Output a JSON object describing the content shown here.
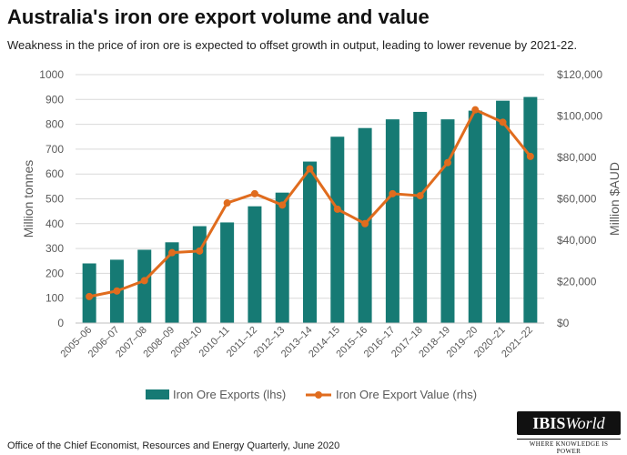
{
  "title": "Australia's iron ore export volume and value",
  "subtitle": "Weakness in the price of iron ore is expected to offset growth in output, leading to lower revenue by 2021-22.",
  "source": "Office of the Chief Economist, Resources and Energy Quarterly, June 2020",
  "logo": {
    "name_bold": "IBIS",
    "name_italic": "World",
    "tagline": "WHERE KNOWLEDGE IS POWER"
  },
  "colors": {
    "bar": "#167a74",
    "line": "#e06c1e",
    "grid": "#d9d9d9",
    "axis_text": "#595959"
  },
  "chart_data": {
    "type": "bar",
    "categories": [
      "2005–06",
      "2006–07",
      "2007–08",
      "2008–09",
      "2009–10",
      "2010–11",
      "2011–12",
      "2012–13",
      "2013–14",
      "2014–15",
      "2015–16",
      "2016–17",
      "2017–18",
      "2018–19",
      "2019–20",
      "2020–21",
      "2021–22"
    ],
    "series": [
      {
        "name": "Iron Ore Exports (lhs)",
        "type": "bar",
        "axis": "left",
        "values": [
          240,
          255,
          295,
          325,
          390,
          405,
          470,
          525,
          650,
          750,
          785,
          820,
          850,
          820,
          855,
          895,
          910
        ]
      },
      {
        "name": "Iron Ore Export Value (rhs)",
        "type": "line",
        "axis": "right",
        "values": [
          12800,
          15500,
          20500,
          34000,
          34800,
          58000,
          62500,
          57000,
          74500,
          55000,
          48000,
          62500,
          61500,
          77500,
          103000,
          97000,
          80500
        ]
      }
    ],
    "ylabel": "Million tonnes",
    "ylim": [
      0,
      1000
    ],
    "yticks": [
      "0",
      "100",
      "200",
      "300",
      "400",
      "500",
      "600",
      "700",
      "800",
      "900",
      "1000"
    ],
    "y2label": "Million $AUD",
    "y2lim": [
      0,
      120000
    ],
    "y2ticks": [
      "$0",
      "$20,000",
      "$40,000",
      "$60,000",
      "$80,000",
      "$100,000",
      "$120,000"
    ],
    "grid": true,
    "legend_position": "bottom"
  }
}
